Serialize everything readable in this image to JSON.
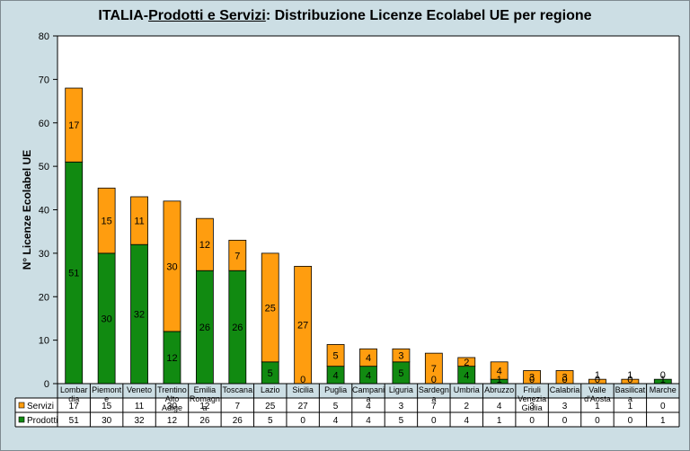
{
  "chart_data": {
    "type": "bar",
    "stacked": true,
    "title": {
      "prefix": "ITALIA-",
      "underlined": "Prodotti e Servizi",
      "suffix": ": Distribuzione Licenze Ecolabel UE  per regione"
    },
    "ylabel": "N° Licenze Ecolabel UE",
    "xlabel": "",
    "ylim": [
      0,
      80
    ],
    "yticks": [
      0,
      10,
      20,
      30,
      40,
      50,
      60,
      70,
      80
    ],
    "categories": [
      [
        "Lombar",
        "dia"
      ],
      [
        "Piemont",
        "e"
      ],
      [
        "Veneto"
      ],
      [
        "Trentino",
        "Alto",
        "Adige"
      ],
      [
        "Emilia",
        "Romagn",
        "a"
      ],
      [
        "Toscana"
      ],
      [
        "Lazio"
      ],
      [
        "Sicilia"
      ],
      [
        "Puglia"
      ],
      [
        "Campani",
        "a"
      ],
      [
        "Liguria"
      ],
      [
        "Sardegn",
        "a"
      ],
      [
        "Umbria"
      ],
      [
        "Abruzzo"
      ],
      [
        "Friuli",
        "Venezia",
        "Giulia"
      ],
      [
        "Calabria"
      ],
      [
        "Valle",
        "d'Aosta"
      ],
      [
        "Basilicat",
        "a"
      ],
      [
        "Marche"
      ]
    ],
    "series": [
      {
        "name": "Prodotti",
        "color": "#118a11",
        "values": [
          51,
          30,
          32,
          12,
          26,
          26,
          5,
          0,
          4,
          4,
          5,
          0,
          4,
          1,
          0,
          0,
          0,
          0,
          1
        ]
      },
      {
        "name": "Servizi",
        "color": "#ff9d0f",
        "values": [
          17,
          15,
          11,
          30,
          12,
          7,
          25,
          27,
          5,
          4,
          3,
          7,
          2,
          4,
          3,
          3,
          1,
          1,
          0
        ]
      }
    ],
    "table": true,
    "grid": false
  }
}
